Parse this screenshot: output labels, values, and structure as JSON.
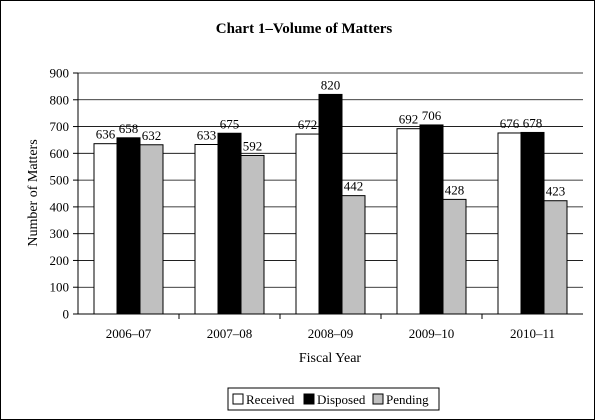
{
  "chart_data": {
    "type": "bar",
    "title": "Chart 1–Volume of Matters",
    "xlabel": "Fiscal Year",
    "ylabel": "Number of Matters",
    "ylim": [
      0,
      900
    ],
    "yticks": [
      0,
      100,
      200,
      300,
      400,
      500,
      600,
      700,
      800,
      900
    ],
    "grid": true,
    "legend_position": "bottom",
    "categories": [
      "2006–07",
      "2007–08",
      "2008–09",
      "2009–10",
      "2010–11"
    ],
    "series": [
      {
        "name": "Received",
        "color": "#ffffff",
        "values": [
          636,
          633,
          672,
          692,
          676
        ]
      },
      {
        "name": "Disposed",
        "color": "#000000",
        "values": [
          658,
          675,
          820,
          706,
          678
        ]
      },
      {
        "name": "Pending",
        "color": "#c0c0c0",
        "values": [
          632,
          592,
          442,
          428,
          423
        ]
      }
    ]
  }
}
